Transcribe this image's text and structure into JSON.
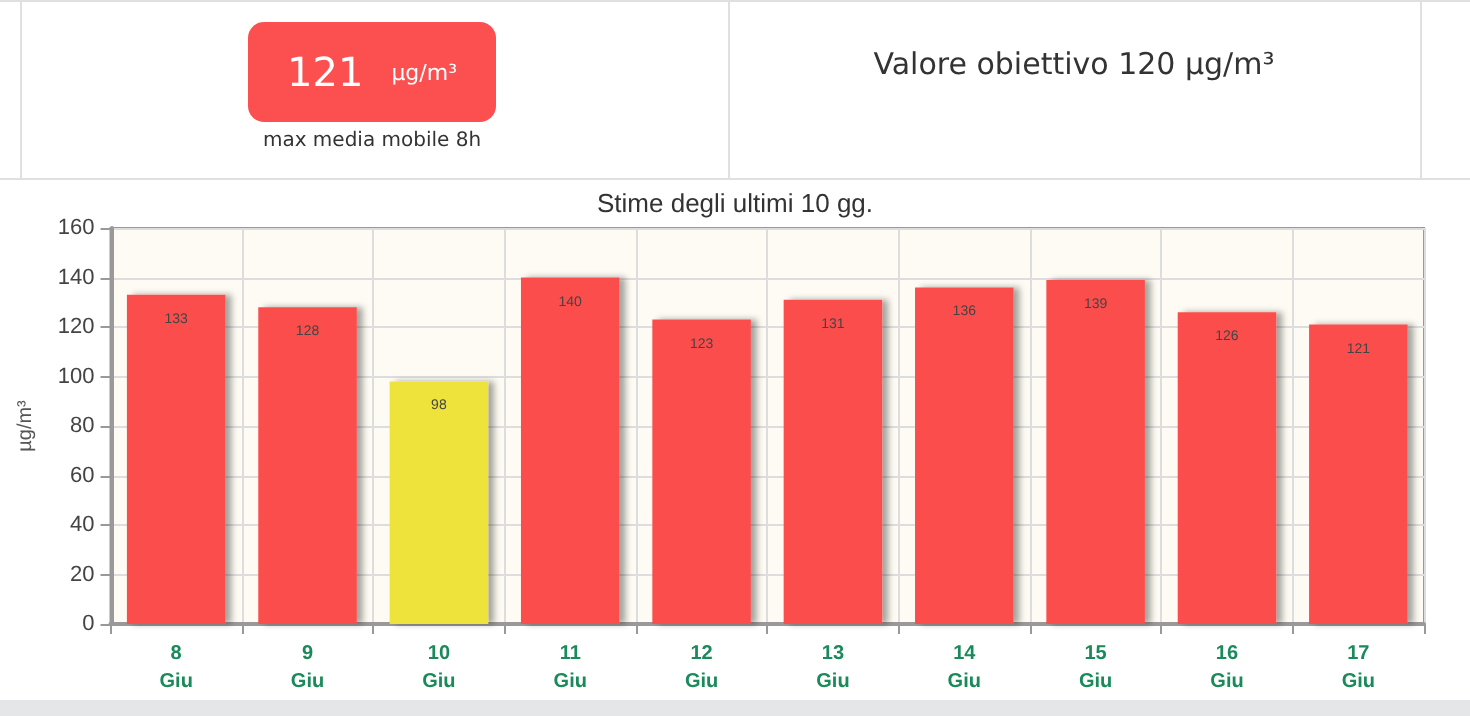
{
  "chart_data": {
    "type": "bar",
    "title": "Stime degli ultimi 10 gg.",
    "ylabel": "µg/m³",
    "annotations": [
      "121",
      "µg/m³",
      "max media mobile 8h",
      "Valore obiettivo 120 µg/m³"
    ],
    "categories": [
      "8\nGiu",
      "9\nGiu",
      "10\nGiu",
      "11\nGiu",
      "12\nGiu",
      "13\nGiu",
      "14\nGiu",
      "15\nGiu",
      "16\nGiu",
      "17\nGiu"
    ],
    "values": [
      133,
      128,
      98,
      140,
      123,
      131,
      136,
      139,
      126,
      121
    ],
    "colors": [
      "#fc4e4e",
      "#fc4e4e",
      "#ede33b",
      "#fc4e4e",
      "#fc4e4e",
      "#fc4e4e",
      "#fc4e4e",
      "#fc4e4e",
      "#fc4e4e",
      "#fc4e4e"
    ],
    "ylim": [
      0,
      160
    ],
    "yticks": [
      0,
      20,
      40,
      60,
      80,
      100,
      120,
      140,
      160
    ],
    "grid": true,
    "data_labels": true
  }
}
